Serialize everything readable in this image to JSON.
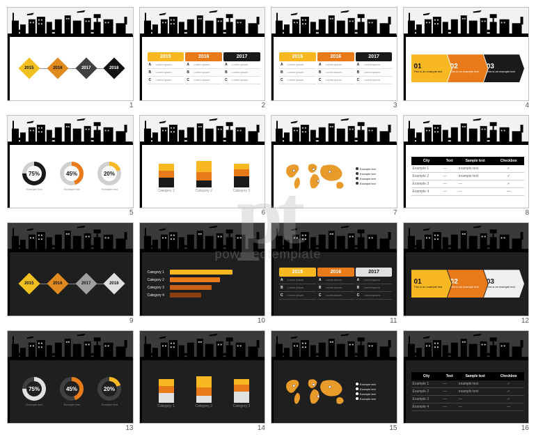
{
  "watermark": {
    "big": "pt",
    "sub": "poweredtemplate"
  },
  "skyline_fill": "#000000",
  "skyline_fill_dark": "#000000",
  "slides": [
    1,
    2,
    3,
    4,
    5,
    6,
    7,
    8,
    9,
    10,
    11,
    12,
    13,
    14,
    15,
    16
  ],
  "timeline": {
    "years": [
      "2015",
      "2016",
      "2017",
      "2018"
    ],
    "colors_light": [
      "#f0c020",
      "#e08a20",
      "#404040",
      "#101010"
    ],
    "colors_dark": [
      "#f0c020",
      "#e08a20",
      "#a0a0a0",
      "#e0e0e0"
    ]
  },
  "table3": {
    "years": [
      "2015",
      "2016",
      "2017"
    ],
    "hdr_colors": [
      "#f8b822",
      "#e87a1a",
      "#1a1a1a"
    ],
    "rows": [
      "A",
      "B",
      "C"
    ],
    "lorem": "Lorem ipsum"
  },
  "arrows": {
    "items": [
      {
        "n": "01",
        "txt": "This is an example text"
      },
      {
        "n": "02",
        "txt": "This is an example text"
      },
      {
        "n": "03",
        "txt": "This is an example text"
      }
    ],
    "colors": [
      "#f8b822",
      "#e87a1a",
      "#1a1a1a"
    ],
    "colors_dark": [
      "#f8b822",
      "#e87a1a",
      "#f0f0f0"
    ],
    "txtcol_dark": [
      "#111",
      "#fff",
      "#111"
    ]
  },
  "donuts": {
    "items": [
      {
        "pct": 75,
        "label": "Example text"
      },
      {
        "pct": 45,
        "label": "Example text"
      },
      {
        "pct": 20,
        "label": "Example text"
      }
    ],
    "colors": [
      "#1a1a1a",
      "#e87a1a",
      "#f8b822"
    ],
    "colors_dark": [
      "#e0e0e0",
      "#e87a1a",
      "#f8b822"
    ],
    "bg": "#d0d0d0",
    "bg_dark": "#404040"
  },
  "bars": {
    "cats": [
      "Category 1",
      "Category 2",
      "Category 3"
    ],
    "stacks": [
      [
        14,
        10,
        10
      ],
      [
        10,
        12,
        16
      ],
      [
        16,
        10,
        8
      ]
    ],
    "colors": [
      "#1a1a1a",
      "#e87a1a",
      "#f8b822"
    ]
  },
  "bars_dark_colors": [
    "#e0e0e0",
    "#e87a1a",
    "#f8b822"
  ],
  "hbars": {
    "cats": [
      "Category 1",
      "Category 2",
      "Category 3",
      "Category 4"
    ],
    "vals": [
      90,
      72,
      60,
      45
    ],
    "colors": [
      "#f8b822",
      "#e87a1a",
      "#c86018",
      "#8a3f10"
    ]
  },
  "map": {
    "fill": "#e89a2a",
    "points": [
      "Example text",
      "Example text",
      "Example text",
      "Example text"
    ]
  },
  "dtable": {
    "headers": [
      "City",
      "Text",
      "Sample text",
      "Checkbox"
    ],
    "rows": [
      [
        "Example 1",
        "—",
        "example text",
        "✓"
      ],
      [
        "Example 2",
        "—",
        "example text",
        "✓"
      ],
      [
        "Example 3",
        "—",
        "—",
        "✓"
      ],
      [
        "Example 4",
        "—",
        "—",
        "—"
      ]
    ]
  }
}
